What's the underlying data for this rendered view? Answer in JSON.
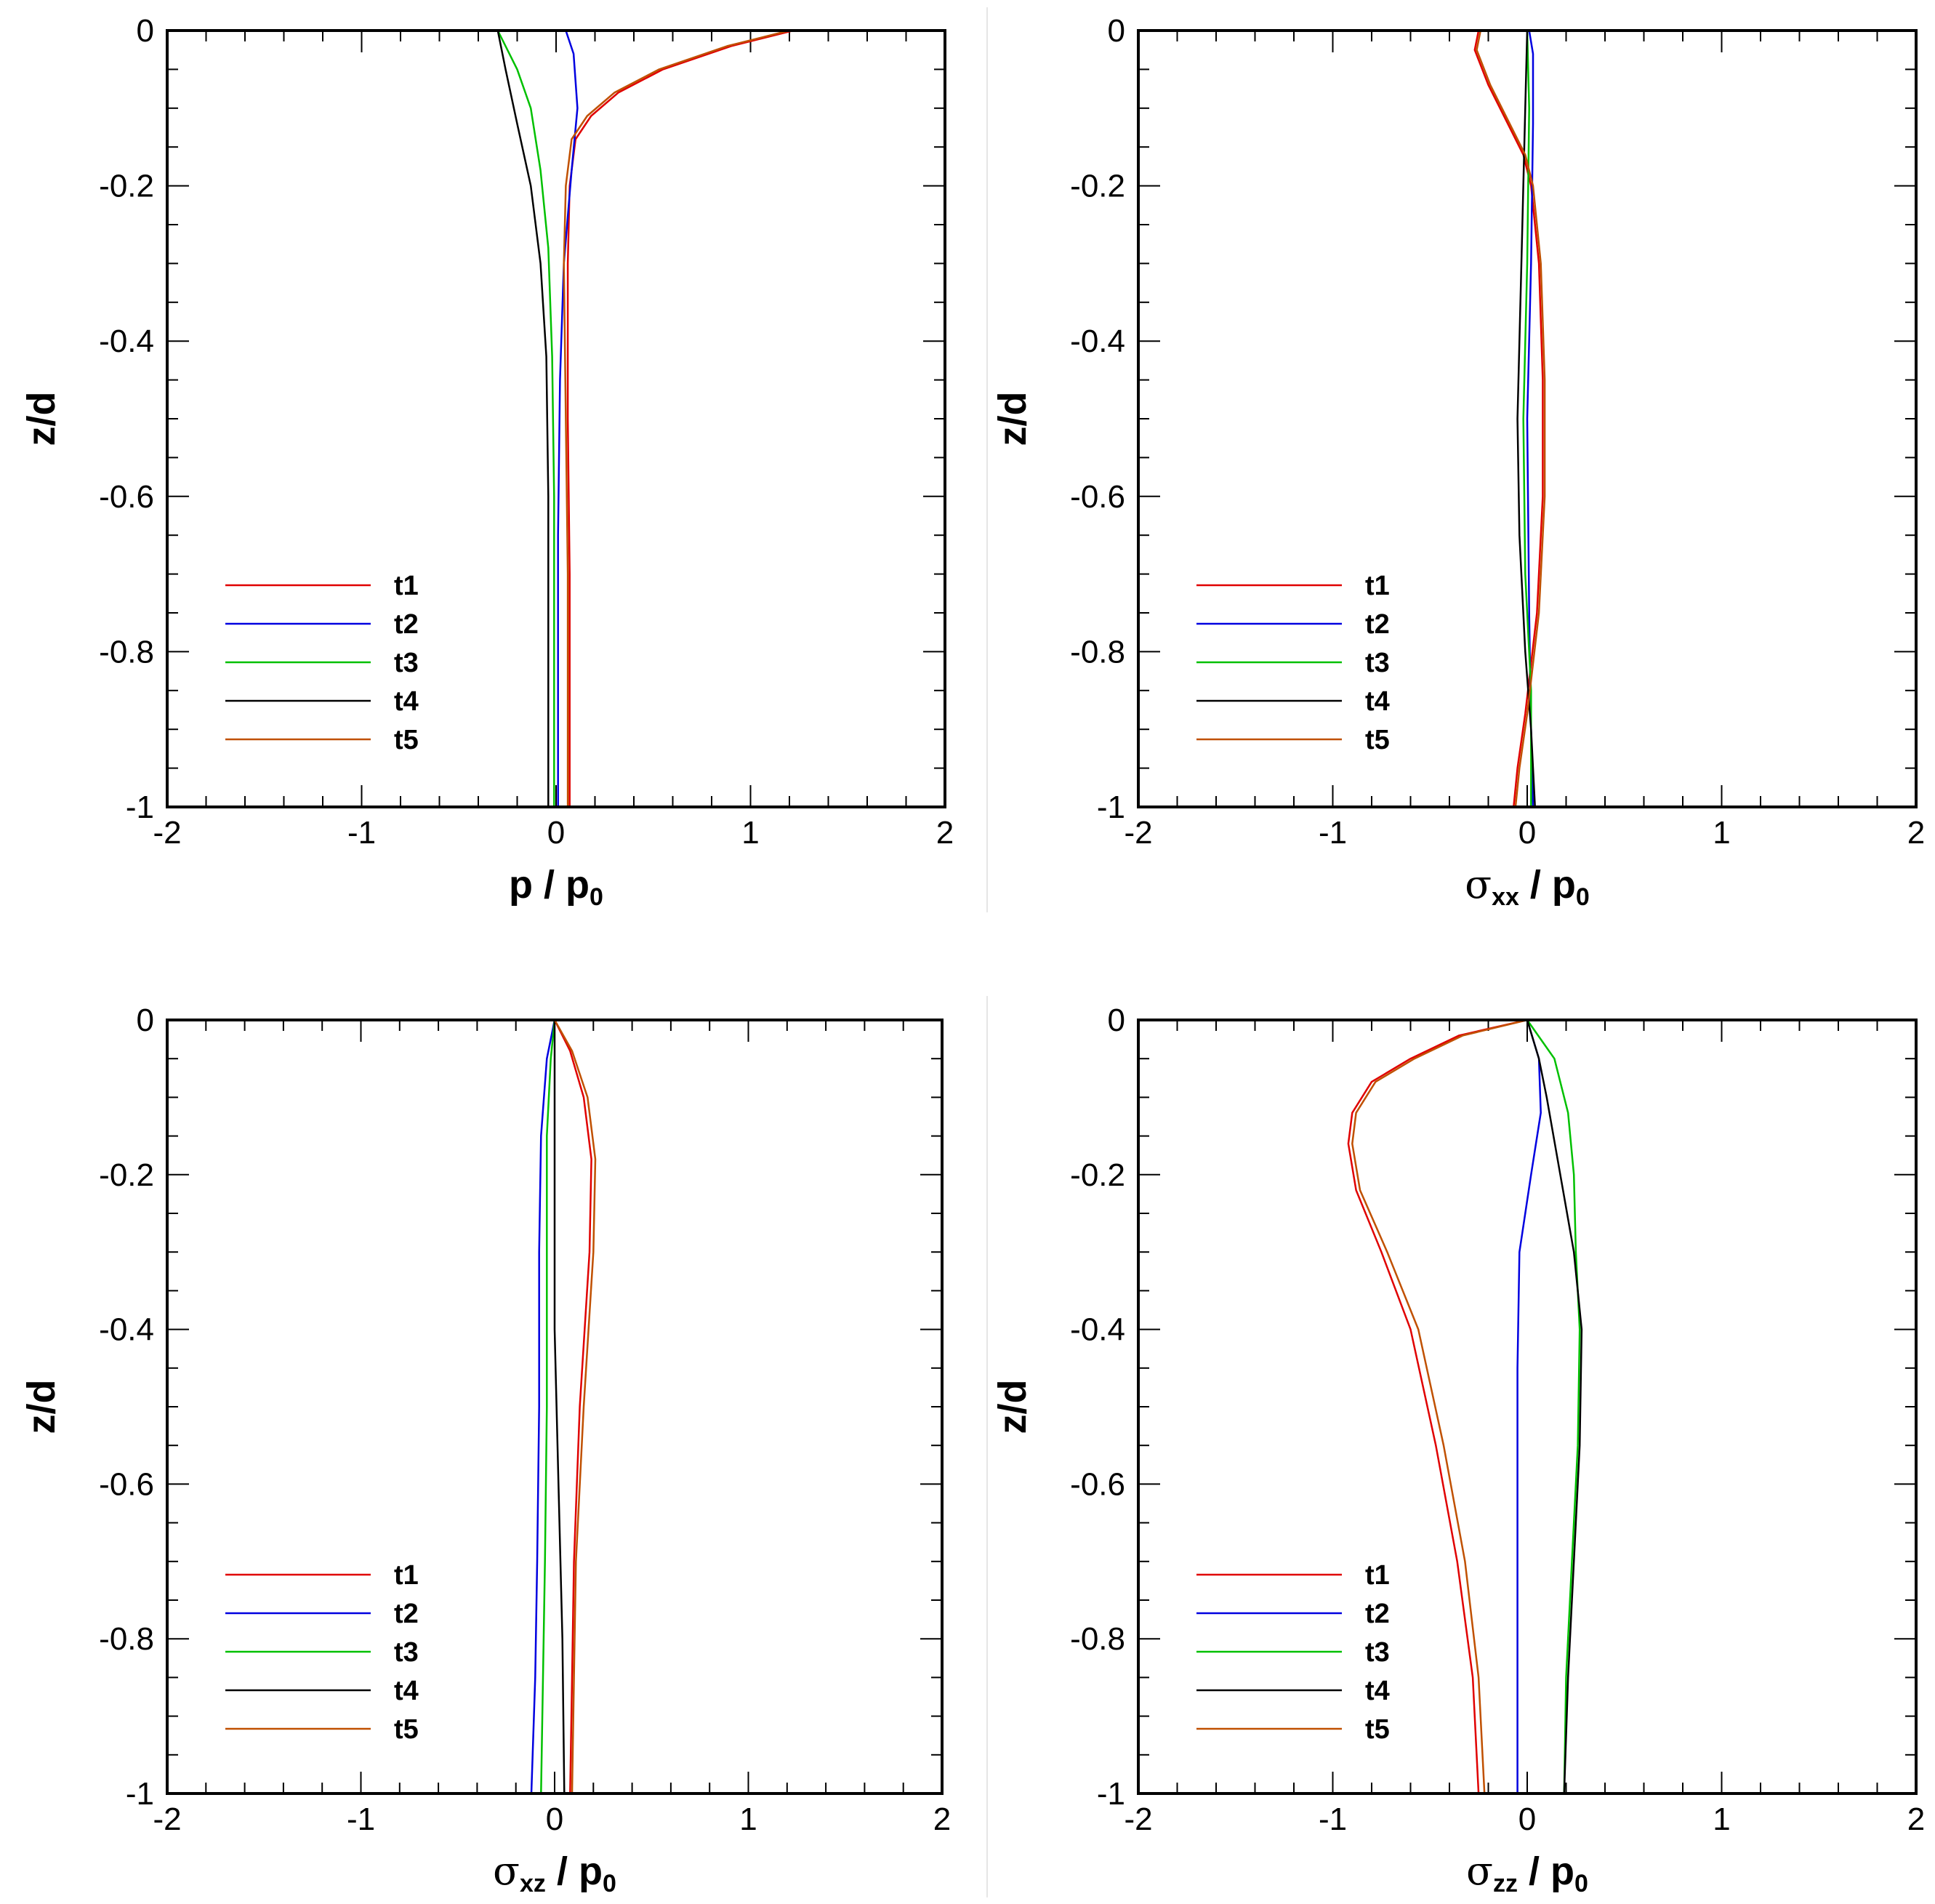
{
  "chart_data": [
    {
      "type": "line",
      "panel": "top-left",
      "xlabel": {
        "main": "p / p",
        "sub": "0",
        "suffix": ""
      },
      "ylabel": "z/d",
      "xlim": [
        -2,
        2
      ],
      "ylim": [
        -1,
        0
      ],
      "xticks": [
        "-2",
        "-1",
        "0",
        "1",
        "2"
      ],
      "yticks": [
        "0",
        "-0.2",
        "-0.4",
        "-0.6",
        "-0.8",
        "-1"
      ],
      "legend_position": "lower-left",
      "series": [
        {
          "name": "t1",
          "color": "#e00000",
          "points": [
            [
              1.22,
              0
            ],
            [
              0.9,
              -0.02
            ],
            [
              0.55,
              -0.05
            ],
            [
              0.32,
              -0.08
            ],
            [
              0.18,
              -0.11
            ],
            [
              0.1,
              -0.14
            ],
            [
              0.07,
              -0.2
            ],
            [
              0.06,
              -0.3
            ],
            [
              0.06,
              -0.5
            ],
            [
              0.07,
              -0.7
            ],
            [
              0.07,
              -1
            ]
          ]
        },
        {
          "name": "t2",
          "color": "#0000e0",
          "points": [
            [
              0.05,
              0
            ],
            [
              0.09,
              -0.03
            ],
            [
              0.11,
              -0.1
            ],
            [
              0.08,
              -0.18
            ],
            [
              0.04,
              -0.3
            ],
            [
              0.02,
              -0.45
            ],
            [
              0.01,
              -0.65
            ],
            [
              0.01,
              -0.85
            ],
            [
              0.01,
              -1
            ]
          ]
        },
        {
          "name": "t3",
          "color": "#00c000",
          "points": [
            [
              -0.3,
              0
            ],
            [
              -0.2,
              -0.05
            ],
            [
              -0.13,
              -0.1
            ],
            [
              -0.08,
              -0.18
            ],
            [
              -0.04,
              -0.28
            ],
            [
              -0.02,
              -0.42
            ],
            [
              -0.01,
              -0.6
            ],
            [
              -0.01,
              -0.8
            ],
            [
              -0.01,
              -1
            ]
          ]
        },
        {
          "name": "t4",
          "color": "#000000",
          "points": [
            [
              -0.3,
              0
            ],
            [
              -0.26,
              -0.05
            ],
            [
              -0.2,
              -0.12
            ],
            [
              -0.13,
              -0.2
            ],
            [
              -0.08,
              -0.3
            ],
            [
              -0.05,
              -0.42
            ],
            [
              -0.04,
              -0.6
            ],
            [
              -0.04,
              -0.8
            ],
            [
              -0.04,
              -1
            ]
          ]
        },
        {
          "name": "t5",
          "color": "#c05000",
          "points": [
            [
              1.2,
              0
            ],
            [
              0.88,
              -0.02
            ],
            [
              0.53,
              -0.05
            ],
            [
              0.3,
              -0.08
            ],
            [
              0.16,
              -0.11
            ],
            [
              0.08,
              -0.14
            ],
            [
              0.05,
              -0.2
            ],
            [
              0.04,
              -0.3
            ],
            [
              0.05,
              -0.5
            ],
            [
              0.06,
              -0.7
            ],
            [
              0.06,
              -1
            ]
          ]
        }
      ]
    },
    {
      "type": "line",
      "panel": "top-right",
      "xlabel": {
        "main": "σ",
        "sub": "xx",
        "suffix": " / p",
        "sub2": "0"
      },
      "ylabel": "z/d",
      "xlim": [
        -2,
        2
      ],
      "ylim": [
        -1,
        0
      ],
      "xticks": [
        "-2",
        "-1",
        "0",
        "1",
        "2"
      ],
      "yticks": [
        "0",
        "-0.2",
        "-0.4",
        "-0.6",
        "-0.8",
        "-1"
      ],
      "legend_position": "lower-left",
      "series": [
        {
          "name": "t1",
          "color": "#e00000",
          "points": [
            [
              -0.25,
              0
            ],
            [
              -0.27,
              -0.025
            ],
            [
              -0.2,
              -0.07
            ],
            [
              -0.1,
              -0.12
            ],
            [
              -0.02,
              -0.16
            ],
            [
              0.02,
              -0.2
            ],
            [
              0.06,
              -0.3
            ],
            [
              0.08,
              -0.45
            ],
            [
              0.08,
              -0.6
            ],
            [
              0.05,
              -0.75
            ],
            [
              -0.01,
              -0.88
            ],
            [
              -0.05,
              -0.95
            ],
            [
              -0.07,
              -1
            ]
          ]
        },
        {
          "name": "t2",
          "color": "#0000e0",
          "points": [
            [
              0.01,
              0
            ],
            [
              0.03,
              -0.03
            ],
            [
              0.03,
              -0.12
            ],
            [
              0.02,
              -0.3
            ],
            [
              0.0,
              -0.5
            ],
            [
              0.01,
              -0.75
            ],
            [
              0.02,
              -0.9
            ],
            [
              0.03,
              -1
            ]
          ]
        },
        {
          "name": "t3",
          "color": "#00c000",
          "points": [
            [
              0.0,
              0
            ],
            [
              0.01,
              -0.1
            ],
            [
              0.0,
              -0.3
            ],
            [
              -0.02,
              -0.5
            ],
            [
              -0.01,
              -0.7
            ],
            [
              0.02,
              -0.85
            ],
            [
              0.02,
              -1
            ]
          ]
        },
        {
          "name": "t4",
          "color": "#000000",
          "points": [
            [
              0.0,
              0
            ],
            [
              -0.01,
              -0.1
            ],
            [
              -0.03,
              -0.3
            ],
            [
              -0.05,
              -0.5
            ],
            [
              -0.04,
              -0.65
            ],
            [
              -0.01,
              -0.8
            ],
            [
              0.02,
              -0.9
            ],
            [
              0.04,
              -1
            ]
          ]
        },
        {
          "name": "t5",
          "color": "#c05000",
          "points": [
            [
              -0.24,
              0
            ],
            [
              -0.26,
              -0.025
            ],
            [
              -0.19,
              -0.07
            ],
            [
              -0.09,
              -0.12
            ],
            [
              -0.01,
              -0.16
            ],
            [
              0.03,
              -0.2
            ],
            [
              0.07,
              -0.3
            ],
            [
              0.09,
              -0.45
            ],
            [
              0.09,
              -0.6
            ],
            [
              0.06,
              -0.75
            ],
            [
              0.0,
              -0.88
            ],
            [
              -0.04,
              -0.95
            ],
            [
              -0.06,
              -1
            ]
          ]
        }
      ]
    },
    {
      "type": "line",
      "panel": "bottom-left",
      "xlabel": {
        "main": "σ",
        "sub": "xz",
        "suffix": " / p",
        "sub2": "0"
      },
      "ylabel": "z/d",
      "xlim": [
        -2,
        2
      ],
      "ylim": [
        -1,
        0
      ],
      "xticks": [
        "-2",
        "-1",
        "0",
        "1",
        "2"
      ],
      "yticks": [
        "0",
        "-0.2",
        "-0.4",
        "-0.6",
        "-0.8",
        "-1"
      ],
      "legend_position": "lower-left",
      "series": [
        {
          "name": "t1",
          "color": "#e00000",
          "points": [
            [
              0.0,
              0
            ],
            [
              0.08,
              -0.04
            ],
            [
              0.15,
              -0.1
            ],
            [
              0.19,
              -0.18
            ],
            [
              0.18,
              -0.3
            ],
            [
              0.13,
              -0.5
            ],
            [
              0.1,
              -0.7
            ],
            [
              0.09,
              -0.85
            ],
            [
              0.08,
              -1
            ]
          ]
        },
        {
          "name": "t2",
          "color": "#0000e0",
          "points": [
            [
              0.0,
              0
            ],
            [
              -0.04,
              -0.05
            ],
            [
              -0.07,
              -0.15
            ],
            [
              -0.08,
              -0.3
            ],
            [
              -0.08,
              -0.5
            ],
            [
              -0.09,
              -0.7
            ],
            [
              -0.1,
              -0.85
            ],
            [
              -0.12,
              -1
            ]
          ]
        },
        {
          "name": "t3",
          "color": "#00c000",
          "points": [
            [
              0.0,
              0
            ],
            [
              -0.02,
              -0.05
            ],
            [
              -0.04,
              -0.15
            ],
            [
              -0.04,
              -0.3
            ],
            [
              -0.04,
              -0.5
            ],
            [
              -0.05,
              -0.7
            ],
            [
              -0.06,
              -0.85
            ],
            [
              -0.07,
              -1
            ]
          ]
        },
        {
          "name": "t4",
          "color": "#000000",
          "points": [
            [
              0.0,
              0
            ],
            [
              0.0,
              -0.2
            ],
            [
              0.0,
              -0.4
            ],
            [
              0.02,
              -0.6
            ],
            [
              0.04,
              -0.8
            ],
            [
              0.05,
              -1
            ]
          ]
        },
        {
          "name": "t5",
          "color": "#c05000",
          "points": [
            [
              0.0,
              0
            ],
            [
              0.09,
              -0.04
            ],
            [
              0.17,
              -0.1
            ],
            [
              0.21,
              -0.18
            ],
            [
              0.2,
              -0.3
            ],
            [
              0.15,
              -0.5
            ],
            [
              0.11,
              -0.7
            ],
            [
              0.1,
              -0.85
            ],
            [
              0.09,
              -1
            ]
          ]
        }
      ]
    },
    {
      "type": "line",
      "panel": "bottom-right",
      "xlabel": {
        "main": "σ",
        "sub": "zz",
        "suffix": " / p",
        "sub2": "0"
      },
      "ylabel": "z/d",
      "xlim": [
        -2,
        2
      ],
      "ylim": [
        -1,
        0
      ],
      "xticks": [
        "-2",
        "-1",
        "0",
        "1",
        "2"
      ],
      "yticks": [
        "0",
        "-0.2",
        "-0.4",
        "-0.6",
        "-0.8",
        "-1"
      ],
      "legend_position": "lower-left",
      "series": [
        {
          "name": "t1",
          "color": "#e00000",
          "points": [
            [
              0.0,
              0
            ],
            [
              -0.35,
              -0.02
            ],
            [
              -0.6,
              -0.05
            ],
            [
              -0.8,
              -0.08
            ],
            [
              -0.9,
              -0.12
            ],
            [
              -0.92,
              -0.16
            ],
            [
              -0.88,
              -0.22
            ],
            [
              -0.75,
              -0.3
            ],
            [
              -0.6,
              -0.4
            ],
            [
              -0.47,
              -0.55
            ],
            [
              -0.36,
              -0.7
            ],
            [
              -0.28,
              -0.85
            ],
            [
              -0.25,
              -1
            ]
          ]
        },
        {
          "name": "t2",
          "color": "#0000e0",
          "points": [
            [
              0.0,
              0
            ],
            [
              0.06,
              -0.05
            ],
            [
              0.07,
              -0.12
            ],
            [
              0.02,
              -0.2
            ],
            [
              -0.04,
              -0.3
            ],
            [
              -0.05,
              -0.45
            ],
            [
              -0.05,
              -0.65
            ],
            [
              -0.05,
              -0.85
            ],
            [
              -0.05,
              -1
            ]
          ]
        },
        {
          "name": "t3",
          "color": "#00c000",
          "points": [
            [
              0.0,
              0
            ],
            [
              0.14,
              -0.05
            ],
            [
              0.21,
              -0.12
            ],
            [
              0.24,
              -0.2
            ],
            [
              0.25,
              -0.3
            ],
            [
              0.27,
              -0.4
            ],
            [
              0.26,
              -0.55
            ],
            [
              0.23,
              -0.7
            ],
            [
              0.2,
              -0.85
            ],
            [
              0.19,
              -1
            ]
          ]
        },
        {
          "name": "t4",
          "color": "#000000",
          "points": [
            [
              0.0,
              0
            ],
            [
              0.06,
              -0.05
            ],
            [
              0.1,
              -0.1
            ],
            [
              0.17,
              -0.2
            ],
            [
              0.24,
              -0.3
            ],
            [
              0.28,
              -0.4
            ],
            [
              0.27,
              -0.55
            ],
            [
              0.24,
              -0.7
            ],
            [
              0.21,
              -0.85
            ],
            [
              0.19,
              -1
            ]
          ]
        },
        {
          "name": "t5",
          "color": "#c05000",
          "points": [
            [
              0.0,
              0
            ],
            [
              -0.33,
              -0.02
            ],
            [
              -0.58,
              -0.05
            ],
            [
              -0.78,
              -0.08
            ],
            [
              -0.88,
              -0.12
            ],
            [
              -0.9,
              -0.16
            ],
            [
              -0.86,
              -0.22
            ],
            [
              -0.72,
              -0.3
            ],
            [
              -0.56,
              -0.4
            ],
            [
              -0.43,
              -0.55
            ],
            [
              -0.32,
              -0.7
            ],
            [
              -0.25,
              -0.85
            ],
            [
              -0.22,
              -1
            ]
          ]
        }
      ]
    }
  ]
}
